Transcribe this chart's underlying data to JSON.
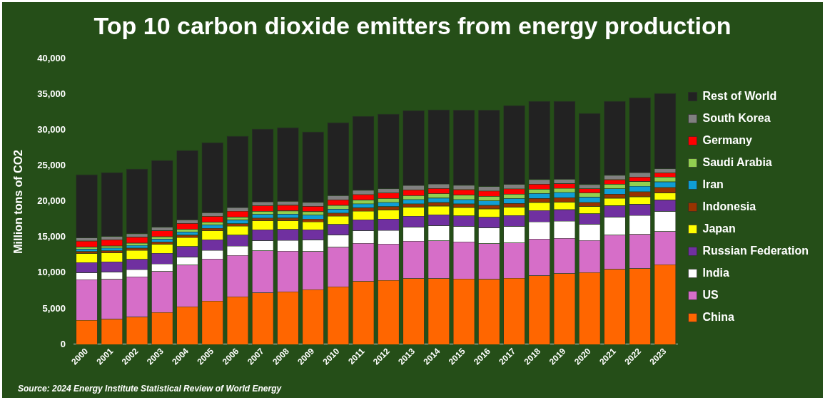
{
  "chart_data": {
    "type": "bar",
    "stacked": true,
    "title": "Top 10 carbon dioxide emitters from energy production",
    "ylabel": "Million tons of CO2",
    "categories": [
      "2000",
      "2001",
      "2002",
      "2003",
      "2004",
      "2005",
      "2006",
      "2007",
      "2008",
      "2009",
      "2010",
      "2011",
      "2012",
      "2013",
      "2014",
      "2015",
      "2016",
      "2017",
      "2018",
      "2019",
      "2020",
      "2021",
      "2022",
      "2023"
    ],
    "series": [
      {
        "name": "China",
        "color": "#ff6600",
        "values": [
          3400,
          3550,
          3850,
          4500,
          5300,
          6100,
          6700,
          7250,
          7400,
          7700,
          8100,
          8850,
          9000,
          9250,
          9250,
          9200,
          9150,
          9300,
          9650,
          9950,
          10100,
          10550,
          10650,
          11200
        ]
      },
      {
        "name": "US",
        "color": "#d66ec8",
        "values": [
          5700,
          5600,
          5650,
          5750,
          5850,
          5900,
          5800,
          5900,
          5700,
          5350,
          5550,
          5350,
          5100,
          5250,
          5300,
          5200,
          5000,
          4950,
          5150,
          4950,
          4500,
          4800,
          4800,
          4650
        ]
      },
      {
        "name": "India",
        "color": "#ffffff",
        "values": [
          950,
          1000,
          1000,
          1050,
          1100,
          1200,
          1300,
          1400,
          1500,
          1600,
          1700,
          1750,
          1900,
          1950,
          2100,
          2150,
          2200,
          2300,
          2400,
          2400,
          2250,
          2500,
          2650,
          2800
        ]
      },
      {
        "name": "Russian Federation",
        "color": "#7030a0",
        "values": [
          1450,
          1450,
          1450,
          1500,
          1500,
          1500,
          1550,
          1550,
          1550,
          1450,
          1500,
          1550,
          1600,
          1550,
          1550,
          1500,
          1500,
          1550,
          1600,
          1600,
          1500,
          1600,
          1550,
          1600
        ]
      },
      {
        "name": "Japan",
        "color": "#ffff00",
        "values": [
          1250,
          1250,
          1250,
          1250,
          1250,
          1250,
          1250,
          1250,
          1200,
          1100,
          1150,
          1200,
          1250,
          1250,
          1200,
          1150,
          1150,
          1150,
          1100,
          1050,
          1000,
          1050,
          1050,
          1000
        ]
      },
      {
        "name": "Indonesia",
        "color": "#993300",
        "values": [
          280,
          300,
          310,
          320,
          330,
          340,
          350,
          370,
          380,
          390,
          420,
          450,
          480,
          460,
          500,
          500,
          500,
          530,
          580,
          630,
          560,
          580,
          720,
          760
        ]
      },
      {
        "name": "Iran",
        "color": "#0f9ed5",
        "values": [
          350,
          370,
          390,
          410,
          450,
          480,
          510,
          530,
          550,
          560,
          560,
          570,
          580,
          600,
          630,
          620,
          640,
          680,
          700,
          730,
          740,
          760,
          770,
          790
        ]
      },
      {
        "name": "Saudi Arabia",
        "color": "#92d050",
        "values": [
          280,
          290,
          310,
          330,
          360,
          380,
          400,
          420,
          450,
          480,
          520,
          530,
          560,
          570,
          610,
          630,
          630,
          620,
          590,
          580,
          590,
          620,
          660,
          680
        ]
      },
      {
        "name": "Germany",
        "color": "#ff0000",
        "values": [
          850,
          870,
          850,
          850,
          840,
          820,
          830,
          800,
          800,
          750,
          780,
          760,
          770,
          790,
          740,
          750,
          750,
          730,
          710,
          660,
          600,
          640,
          630,
          580
        ]
      },
      {
        "name": "South Korea",
        "color": "#808080",
        "values": [
          450,
          460,
          470,
          480,
          490,
          500,
          500,
          520,
          530,
          540,
          580,
          610,
          610,
          620,
          610,
          620,
          620,
          640,
          650,
          620,
          590,
          620,
          610,
          590
        ]
      },
      {
        "name": "Rest of World",
        "color": "#222222",
        "values": [
          8840,
          8960,
          9070,
          9360,
          9730,
          9830,
          10010,
          10210,
          10340,
          9880,
          10240,
          10380,
          10450,
          10510,
          10410,
          10530,
          10710,
          11050,
          10970,
          10930,
          9970,
          10380,
          10510,
          10550
        ]
      }
    ],
    "ylim": [
      0,
      40000
    ],
    "yticks": [
      0,
      {
        "value": 5000,
        "label": "5,000"
      },
      {
        "value": 10000,
        "label": "10,000"
      },
      {
        "value": 15000,
        "label": "15,000"
      },
      {
        "value": 20000,
        "label": "20,000"
      },
      {
        "value": 25000,
        "label": "25,000"
      },
      {
        "value": 30000,
        "label": "30,000"
      },
      {
        "value": 35000,
        "label": "35,000"
      },
      {
        "value": 40000,
        "label": "40,000"
      }
    ],
    "grid": false,
    "legend": "right",
    "annotations": [
      "Source: 2024 Energy Institute Statistical Review of World Energy"
    ]
  }
}
